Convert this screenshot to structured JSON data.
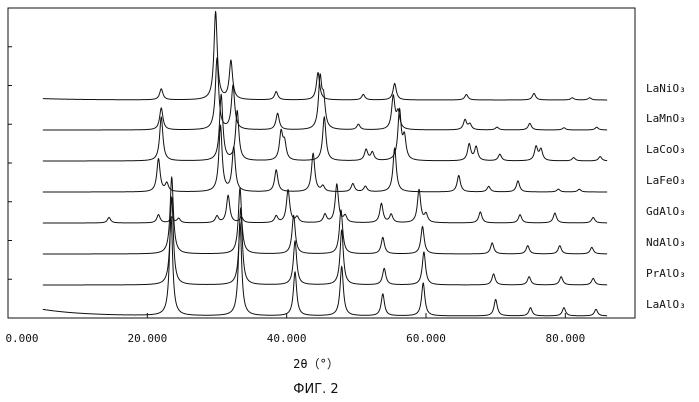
{
  "chart_data": {
    "type": "line",
    "title": "",
    "xlabel": "2θ（°）",
    "ylabel": "",
    "xlim": [
      0,
      90
    ],
    "xticks": [
      {
        "value": 0,
        "label": "0.000"
      },
      {
        "value": 20,
        "label": "20.000"
      },
      {
        "value": 40,
        "label": "40.000"
      },
      {
        "value": 60,
        "label": "60.000"
      },
      {
        "value": 80,
        "label": "80.000"
      }
    ],
    "caption": "ФИГ. 2",
    "grid": false,
    "legend": "labels at right end of each trace",
    "series": [
      {
        "name": "LaNiO₃",
        "start": 5,
        "end": 86,
        "rise": 0.25,
        "peaks": [
          [
            22.0,
            2.0
          ],
          [
            29.8,
            16.0
          ],
          [
            32.0,
            7.0
          ],
          [
            38.5,
            1.5
          ],
          [
            44.5,
            5.0
          ],
          [
            51.0,
            1.0
          ],
          [
            55.5,
            3.0
          ],
          [
            65.8,
            1.0
          ],
          [
            75.5,
            1.2
          ],
          [
            81.0,
            0.4
          ],
          [
            83.5,
            0.4
          ]
        ]
      },
      {
        "name": "LaMnO₃",
        "start": 5,
        "end": 86,
        "rise": 0.0,
        "peaks": [
          [
            22.0,
            4.0
          ],
          [
            30.0,
            13.0
          ],
          [
            32.3,
            8.0
          ],
          [
            38.7,
            3.0
          ],
          [
            44.8,
            9.0
          ],
          [
            45.3,
            5.0
          ],
          [
            50.3,
            1.0
          ],
          [
            55.3,
            6.0
          ],
          [
            56.0,
            3.0
          ],
          [
            65.6,
            1.8
          ],
          [
            66.3,
            1.0
          ],
          [
            70.2,
            0.5
          ],
          [
            74.9,
            1.2
          ],
          [
            79.8,
            0.4
          ],
          [
            84.5,
            0.5
          ]
        ]
      },
      {
        "name": "LaCoO₃",
        "start": 5,
        "end": 86,
        "rise": 0.0,
        "peaks": [
          [
            22.0,
            8.0
          ],
          [
            30.6,
            12.0
          ],
          [
            32.9,
            9.0
          ],
          [
            39.2,
            5.0
          ],
          [
            39.7,
            3.0
          ],
          [
            45.4,
            8.0
          ],
          [
            51.4,
            2.0
          ],
          [
            52.3,
            1.5
          ],
          [
            56.2,
            9.0
          ],
          [
            56.9,
            4.0
          ],
          [
            66.2,
            3.0
          ],
          [
            67.2,
            2.5
          ],
          [
            70.6,
            1.2
          ],
          [
            75.8,
            2.5
          ],
          [
            76.5,
            2.0
          ],
          [
            81.2,
            0.6
          ],
          [
            85.0,
            0.8
          ]
        ]
      },
      {
        "name": "LaFeO₃",
        "start": 5,
        "end": 86,
        "rise": 0.0,
        "peaks": [
          [
            21.6,
            6.0
          ],
          [
            22.8,
            1.5
          ],
          [
            30.5,
            12.0
          ],
          [
            32.4,
            8.0
          ],
          [
            38.5,
            4.0
          ],
          [
            43.8,
            7.0
          ],
          [
            45.2,
            1.0
          ],
          [
            49.5,
            1.5
          ],
          [
            51.3,
            1.0
          ],
          [
            55.5,
            8.0
          ],
          [
            64.7,
            3.0
          ],
          [
            69.0,
            1.0
          ],
          [
            73.2,
            2.0
          ],
          [
            79.0,
            0.5
          ],
          [
            82.0,
            0.5
          ]
        ]
      },
      {
        "name": "GdAlO₃",
        "start": 5,
        "end": 86,
        "rise": 0.0,
        "peaks": [
          [
            14.5,
            1.0
          ],
          [
            21.6,
            1.5
          ],
          [
            23.5,
            1.0
          ],
          [
            24.5,
            0.8
          ],
          [
            30.0,
            1.2
          ],
          [
            31.6,
            5.0
          ],
          [
            33.5,
            1.0
          ],
          [
            38.5,
            1.2
          ],
          [
            40.2,
            6.0
          ],
          [
            41.5,
            1.0
          ],
          [
            45.5,
            1.5
          ],
          [
            47.2,
            7.0
          ],
          [
            48.4,
            1.2
          ],
          [
            53.6,
            3.5
          ],
          [
            55.0,
            1.5
          ],
          [
            59.0,
            6.0
          ],
          [
            60.0,
            1.5
          ],
          [
            67.8,
            2.0
          ],
          [
            73.5,
            1.5
          ],
          [
            78.5,
            1.8
          ],
          [
            84.0,
            1.0
          ]
        ]
      },
      {
        "name": "NdAlO₃",
        "start": 5,
        "end": 86,
        "rise": 0.0,
        "peaks": [
          [
            23.5,
            14.0
          ],
          [
            33.3,
            12.0
          ],
          [
            41.0,
            7.0
          ],
          [
            47.8,
            8.0
          ],
          [
            53.8,
            3.0
          ],
          [
            59.5,
            5.0
          ],
          [
            69.5,
            2.0
          ],
          [
            74.6,
            1.5
          ],
          [
            79.2,
            1.5
          ],
          [
            83.8,
            1.2
          ]
        ]
      },
      {
        "name": "PrAlO₃",
        "start": 5,
        "end": 86,
        "rise": 0.0,
        "peaks": [
          [
            23.5,
            16.0
          ],
          [
            33.4,
            14.0
          ],
          [
            41.2,
            8.0
          ],
          [
            47.9,
            10.0
          ],
          [
            54.0,
            3.0
          ],
          [
            59.7,
            6.0
          ],
          [
            69.7,
            2.0
          ],
          [
            74.8,
            1.5
          ],
          [
            79.4,
            1.5
          ],
          [
            84.0,
            1.2
          ]
        ]
      },
      {
        "name": "LaAlO₃",
        "start": 5,
        "end": 86,
        "rise": 1.2,
        "peaks": [
          [
            23.4,
            18.0
          ],
          [
            33.3,
            17.0
          ],
          [
            41.2,
            8.0
          ],
          [
            47.9,
            9.0
          ],
          [
            53.8,
            4.0
          ],
          [
            59.6,
            6.0
          ],
          [
            70.0,
            3.0
          ],
          [
            75.0,
            1.5
          ],
          [
            79.8,
            1.5
          ],
          [
            84.4,
            1.2
          ],
          [
            89.8,
            0.8
          ]
        ]
      }
    ]
  }
}
